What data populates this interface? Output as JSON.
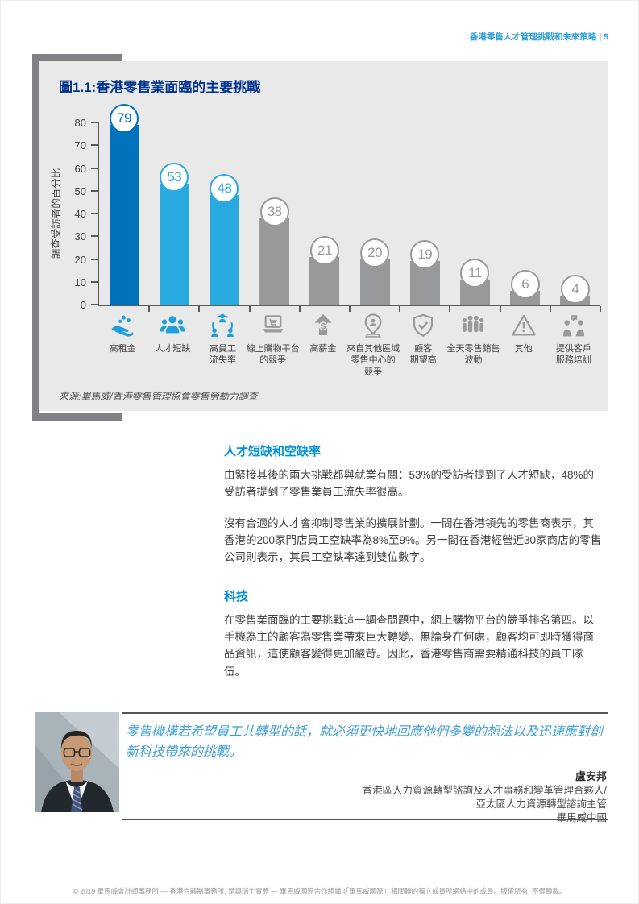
{
  "page": {
    "header": "香港零售人才管理挑戰和未來策略 | 5"
  },
  "chart_data": {
    "type": "bar",
    "title": "圖1.1:香港零售業面臨的主要挑戰",
    "ylabel": "調查受訪者的百分比",
    "ylim": [
      0,
      80
    ],
    "yticks": [
      0,
      10,
      20,
      30,
      40,
      50,
      60,
      70,
      80
    ],
    "grid": false,
    "legend": "none",
    "source": "來源:畢馬威/香港零售管理協會零售勞動力調查",
    "panel_bg": "#e9e9ea",
    "categories": [
      {
        "label": "高租金",
        "value": 79,
        "color": "#0072bc",
        "icon": "coins-in-hand-icon",
        "icon_color": "#1e9fd9"
      },
      {
        "label": "人才短缺",
        "value": 53,
        "color": "#29aae1",
        "icon": "people-group-icon",
        "icon_color": "#1e9fd9"
      },
      {
        "label": "高員工\n流失率",
        "value": 48,
        "color": "#29aae1",
        "icon": "staff-turnover-icon",
        "icon_color": "#1e9fd9"
      },
      {
        "label": "線上購物平台\n的競爭",
        "value": 38,
        "color": "#97999b",
        "icon": "online-shopping-icon",
        "icon_color": "#97999b"
      },
      {
        "label": "高薪金",
        "value": 21,
        "color": "#97999b",
        "icon": "salary-arrow-icon",
        "icon_color": "#97999b"
      },
      {
        "label": "來自其他區域\n零售中心的\n競爭",
        "value": 20,
        "color": "#97999b",
        "icon": "location-pin-icon",
        "icon_color": "#97999b"
      },
      {
        "label": "顧客\n期望高",
        "value": 19,
        "color": "#97999b",
        "icon": "shield-check-icon",
        "icon_color": "#97999b"
      },
      {
        "label": "全天零售銷售\n波動",
        "value": 11,
        "color": "#97999b",
        "icon": "crowd-icon",
        "icon_color": "#97999b"
      },
      {
        "label": "其他",
        "value": 6,
        "color": "#97999b",
        "icon": "warning-icon",
        "icon_color": "#97999b"
      },
      {
        "label": "提供客戶\n服務培訓",
        "value": 4,
        "color": "#97999b",
        "icon": "customer-service-icon",
        "icon_color": "#97999b"
      }
    ]
  },
  "main": {
    "section1": {
      "heading": "人才短缺和空缺率",
      "para1": "由緊接其後的兩大挑戰都與就業有關：53%的受訪者提到了人才短缺，48%的受訪者提到了零售業員工流失率很高。",
      "para2": "沒有合適的人才會抑制零售業的擴展計劃。一間在香港領先的零售商表示，其香港的200家門店員工空缺率為8%至9%。另一間在香港經營近30家商店的零售公司則表示，其員工空缺率達到雙位數字。"
    },
    "section2": {
      "heading": "科技",
      "para1": "在零售業面臨的主要挑戰這一調查問題中，網上購物平台的競爭排名第四。以手機為主的顧客為零售業帶來巨大轉變。無論身在何處，顧客均可即時獲得商品資訊，這使顧客變得更加嚴苛。因此，香港零售商需要精通科技的員工隊伍。"
    }
  },
  "quote": {
    "text": "零售機構若希望員工共轉型的話，就必須更快地回應他們多變的想法以及迅速應對創新科技帶來的挑戰。",
    "name": "盧安邦",
    "title_line1": "香港區人力資源轉型諮詢及人才事務和變革管理合夥人/",
    "title_line2": "亞太區人力資源轉型諮詢主管",
    "company": "畢馬威中國"
  },
  "footer": {
    "text": "© 2019 畢馬威會計師事務所 — 香港合夥制事務所, 是與瑞士實體 — 畢馬威國際合作組織 (「畢馬威國際」) 相關聯的獨立成員所網絡中的成員。版權所有, 不得轉載。"
  }
}
